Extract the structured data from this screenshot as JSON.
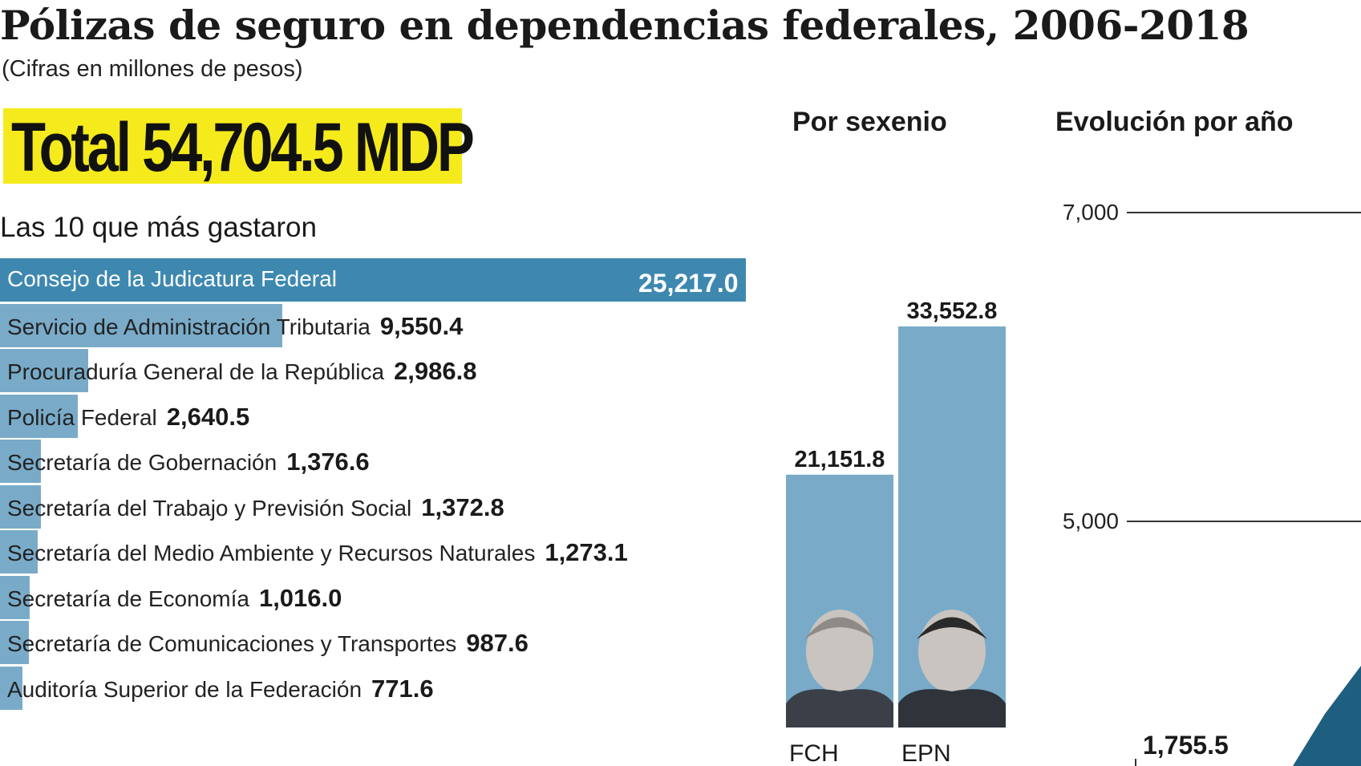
{
  "title": "Pólizas de seguro en dependencias federales, 2006-2018",
  "subtitle": "(Cifras en millones de pesos)",
  "total": "Total 54,704.5 MDP",
  "sections": {
    "top10": "Las 10 que más gastaron",
    "sexenio": "Por sexenio",
    "evolucion": "Evolución por año"
  },
  "colors": {
    "highlight_bar": "#3e88b0",
    "bar": "#79abc9",
    "total_bg": "#f5ea1c",
    "text": "#1a1a1a"
  },
  "chart_data": [
    {
      "type": "bar",
      "orientation": "horizontal",
      "title": "Las 10 que más gastaron",
      "categories": [
        "Consejo de la Judicatura Federal",
        "Servicio de Administración Tributaria",
        "Procuraduría General de la República",
        "Policía Federal",
        "Secretaría de Gobernación",
        "Secretaría del Trabajo y Previsión Social",
        "Secretaría del Medio Ambiente y Recursos Naturales",
        "Secretaría de Economía",
        "Secretaría de Comunicaciones y Transportes",
        "Auditoría Superior de la Federación"
      ],
      "values": [
        25217.0,
        9550.4,
        2986.8,
        2640.5,
        1376.6,
        1372.8,
        1273.1,
        1016.0,
        987.6,
        771.6
      ],
      "value_labels": [
        "25,217.0",
        "9,550.4",
        "2,986.8",
        "2,640.5",
        "1,376.6",
        "1,372.8",
        "1,273.1",
        "1,016.0",
        "987.6",
        "771.6"
      ],
      "xlim": [
        0,
        25217.0
      ]
    },
    {
      "type": "bar",
      "title": "Por sexenio",
      "categories": [
        "FCH",
        "EPN"
      ],
      "values": [
        21151.8,
        33552.8
      ],
      "value_labels": [
        "21,151.8",
        "33,552.8"
      ],
      "ylim": [
        0,
        33552.8
      ]
    },
    {
      "type": "line",
      "title": "Evolución por año",
      "yticks": [
        5000,
        7000
      ],
      "ytick_labels": [
        "5,000",
        "7,000"
      ],
      "annotations": [
        "1,755.5"
      ],
      "grid": true
    }
  ]
}
